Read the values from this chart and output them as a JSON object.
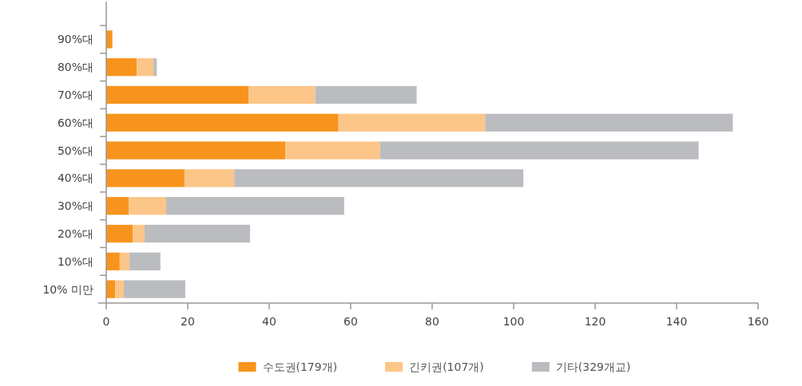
{
  "chart_data": {
    "type": "bar",
    "orientation": "horizontal",
    "stacked": true,
    "categories": [
      "90%대",
      "80%대",
      "70%대",
      "60%대",
      "50%대",
      "40%대",
      "30%대",
      "20%대",
      "10%대",
      "10% 미만"
    ],
    "series": [
      {
        "name": "수도권(179개)",
        "color": "#f7941d",
        "values": [
          1.5,
          7.5,
          35,
          57,
          44,
          19.2,
          5.5,
          6.5,
          3.3,
          2.2
        ]
      },
      {
        "name": "긴키권(107개)",
        "color": "#fcc688",
        "values": [
          0,
          4.1,
          16.3,
          36,
          23.2,
          12.2,
          9.2,
          2.9,
          2.4,
          2.1
        ]
      },
      {
        "name": "기타(329개교)",
        "color": "#bbbcc0",
        "values": [
          0,
          0.8,
          24.9,
          60.8,
          78.2,
          71,
          43.7,
          25.9,
          7.6,
          15.1
        ]
      }
    ],
    "xlim": [
      0,
      160
    ],
    "xticks": [
      0,
      20,
      40,
      60,
      80,
      100,
      120,
      140,
      160
    ],
    "grid": false,
    "legend": "bottom"
  }
}
